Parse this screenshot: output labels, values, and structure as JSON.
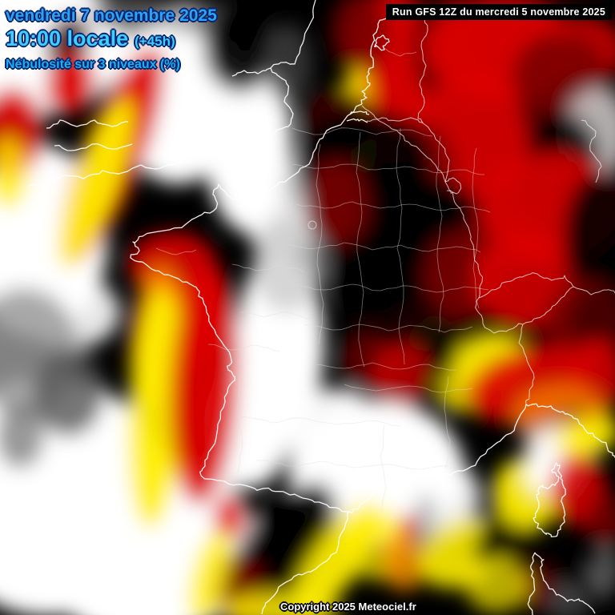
{
  "header": {
    "date_label": "vendredi 7 novembre 2025",
    "time_label": "10:00 locale",
    "offset_label": "(+45h)",
    "product_label": "Nébulosité sur 3 niveaux (%)"
  },
  "run_info": {
    "label": "Run GFS 12Z du mercredi 5 novembre 2025"
  },
  "footer": {
    "copyright_label": "Copyright 2025 Meteociel.fr"
  },
  "colors": {
    "date_text": "#2da4f2",
    "time_text": "#3ccfff",
    "product_text": "#1ab2f0",
    "text_outline": "#04226e",
    "run_badge_bg": "#000000",
    "run_badge_text": "#ffffff",
    "copyright_text": "#ffffff",
    "map_background": "#000000",
    "cloud_white": "#ffffff",
    "cloud_yellow": "#ffee00",
    "cloud_orange": "#ff9100",
    "cloud_red": "#dd0000",
    "cloud_dark_red": "#7a0000",
    "cloud_maroon": "#3c0000",
    "cloud_olive": "#1a1400",
    "cloud_gray_light": "#cccccc",
    "cloud_gray": "#999999",
    "cloud_gray_dark": "#555555",
    "cloud_black": "#000000",
    "coast_line": "#ffffff",
    "border_line": "#f2f2f2",
    "department_line": "#e0e0e0"
  }
}
